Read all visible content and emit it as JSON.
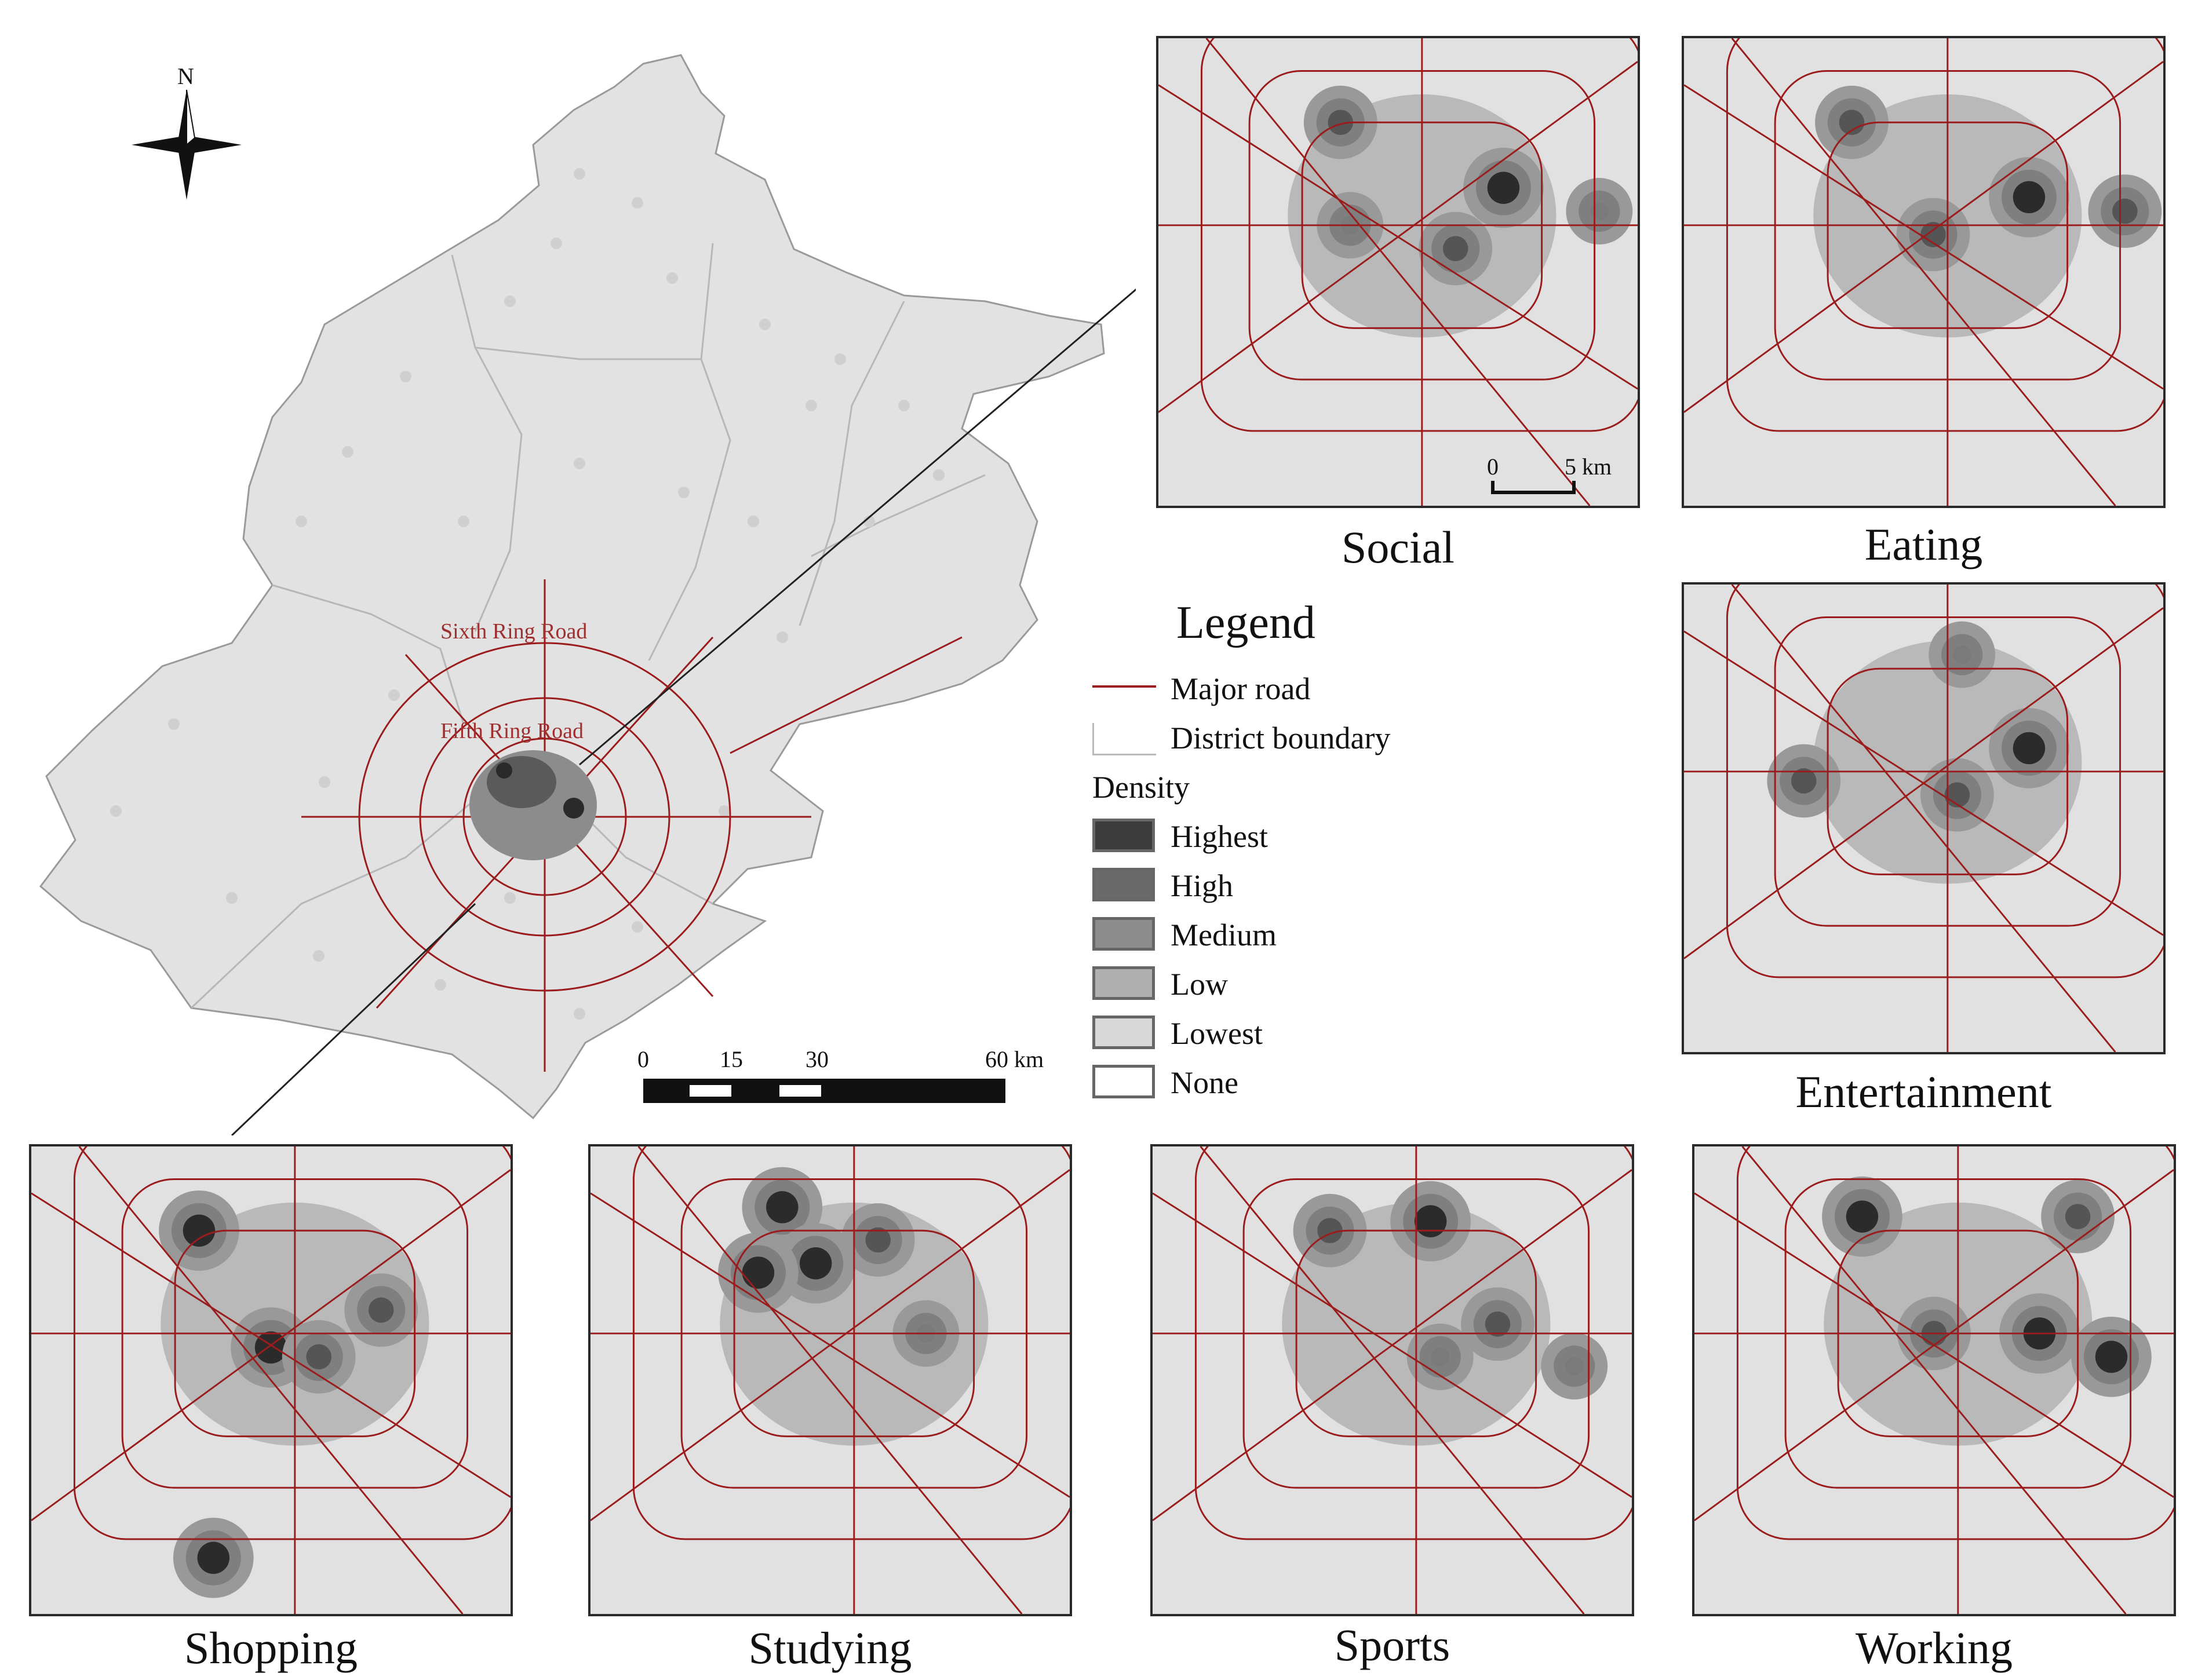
{
  "main_map": {
    "ring_labels": [
      "Sixth Ring Road",
      "Fifth Ring Road"
    ],
    "north_label": "N",
    "scale_labels": [
      "0",
      "15",
      "30",
      "60 km"
    ]
  },
  "legend": {
    "title": "Legend",
    "items": [
      {
        "label": "Major road",
        "symbol": "line",
        "color": "#9b1c1c"
      },
      {
        "label": "District boundary",
        "symbol": "box-outline",
        "color": "#bbbbbb"
      }
    ],
    "density_title": "Density",
    "density_classes": [
      {
        "label": "Highest",
        "color": "#3c3c3c"
      },
      {
        "label": "High",
        "color": "#6a6a6a"
      },
      {
        "label": "Medium",
        "color": "#8c8c8c"
      },
      {
        "label": "Low",
        "color": "#b0b0b0"
      },
      {
        "label": "Lowest",
        "color": "#d8d8d8"
      },
      {
        "label": "None",
        "color": "#ffffff"
      }
    ]
  },
  "panels": [
    {
      "name": "social",
      "caption": "Social",
      "scale": [
        "0",
        "5 km"
      ]
    },
    {
      "name": "eating",
      "caption": "Eating"
    },
    {
      "name": "entertainment",
      "caption": "Entertainment"
    },
    {
      "name": "shopping",
      "caption": "Shopping"
    },
    {
      "name": "studying",
      "caption": "Studying"
    },
    {
      "name": "sports",
      "caption": "Sports"
    },
    {
      "name": "working",
      "caption": "Working"
    }
  ],
  "colors": {
    "road": "#9b1c1c",
    "background": "#e1e1e1",
    "panel_border": "#2a2a2a"
  }
}
